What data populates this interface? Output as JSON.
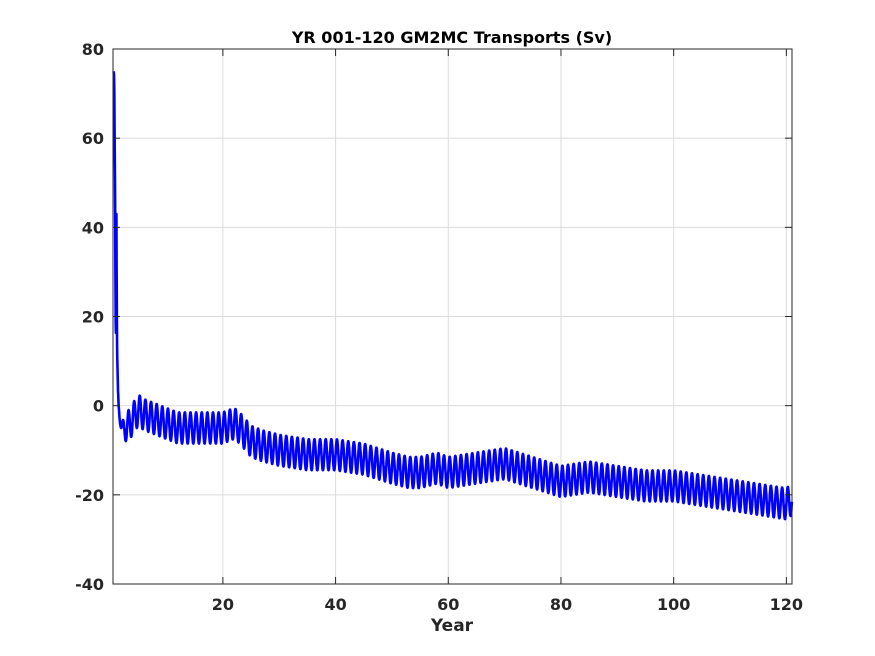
{
  "chart_data": {
    "type": "line",
    "title": "YR 001-120 GM2MC Transports (Sv)",
    "xlabel": "Year",
    "ylabel": "",
    "xlim": [
      0.5,
      121
    ],
    "ylim": [
      -40,
      80
    ],
    "xticks": [
      20,
      40,
      60,
      80,
      100,
      120
    ],
    "yticks": [
      -40,
      -20,
      0,
      20,
      40,
      60,
      80
    ],
    "grid": true,
    "colors": {
      "series": "#0000ff",
      "axes": "#262626",
      "grid": "#dcdcdc"
    },
    "series": [
      {
        "x": [
          0.6,
          0.7,
          0.8,
          0.9,
          1.0,
          1.1,
          1.2,
          1.3,
          1.4,
          1.5,
          1.7,
          2,
          3,
          4,
          5,
          6,
          8,
          10,
          12,
          15,
          18,
          20,
          22,
          23,
          25,
          27,
          30,
          35,
          40,
          45,
          50,
          53,
          55,
          58,
          60,
          65,
          70,
          75,
          80,
          85,
          90,
          95,
          100,
          105,
          110,
          115,
          120,
          121
        ],
        "y": [
          75,
          74,
          60,
          40,
          11,
          43,
          15,
          8,
          3,
          0,
          -3,
          -5,
          -5,
          -3,
          -1,
          -2,
          -3,
          -4,
          -5,
          -5,
          -5,
          -5,
          -4,
          -5,
          -8,
          -9,
          -10,
          -11,
          -11,
          -12,
          -14,
          -15,
          -15,
          -14,
          -15,
          -14,
          -13,
          -15,
          -17,
          -16,
          -17,
          -18,
          -18,
          -19,
          -20,
          -21,
          -22,
          -21
        ],
        "seasonal_amplitude": 3.5
      }
    ]
  }
}
